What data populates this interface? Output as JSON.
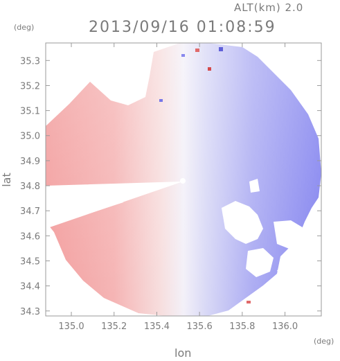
{
  "header": {
    "altitude_label": "ALT(km) 2.0",
    "timestamp": "2013/09/16 01:08:59"
  },
  "axes": {
    "x_unit": "(deg)",
    "y_unit": "(deg)",
    "x_label": "lon",
    "y_label": "lat",
    "x_ticks": [
      "135.0",
      "135.2",
      "135.4",
      "135.6",
      "135.8",
      "136.0"
    ],
    "y_ticks": [
      "35.3",
      "35.2",
      "35.1",
      "35.0",
      "34.9",
      "34.8",
      "34.7",
      "34.6",
      "34.5",
      "34.4",
      "34.3"
    ]
  },
  "map": {
    "center_lon": 135.52,
    "center_lat": 34.81,
    "x_range": [
      134.88,
      136.17
    ],
    "y_range": [
      34.28,
      35.37
    ],
    "colors": {
      "approaching": "#7b7bf0",
      "receding": "#f3a3a3",
      "neutral": "#f4f0f7"
    }
  }
}
